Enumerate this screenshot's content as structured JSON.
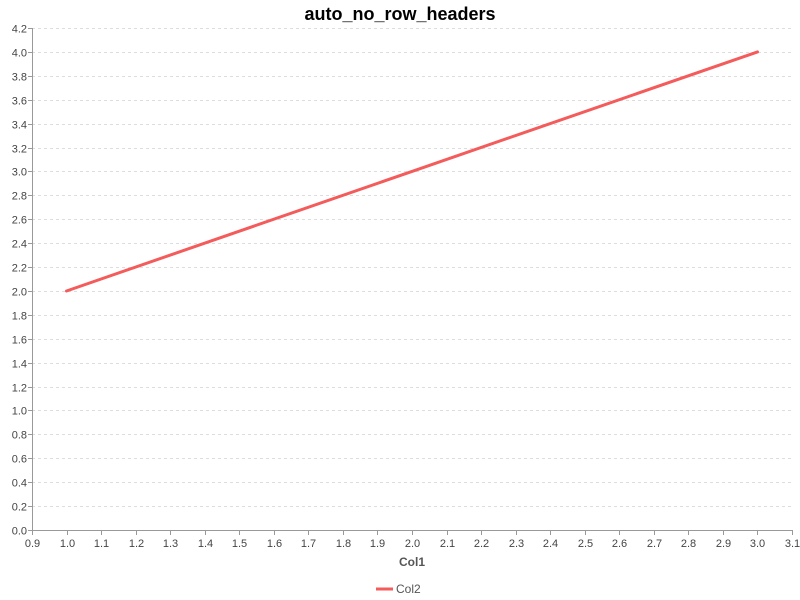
{
  "chart_data": {
    "type": "line",
    "title": "auto_no_row_headers",
    "xlabel": "Col1",
    "ylabel": "",
    "xlim": [
      0.9,
      3.1
    ],
    "ylim": [
      0.0,
      4.2
    ],
    "x_ticks": [
      "0.9",
      "1.0",
      "1.1",
      "1.2",
      "1.3",
      "1.4",
      "1.5",
      "1.6",
      "1.7",
      "1.8",
      "1.9",
      "2.0",
      "2.1",
      "2.2",
      "2.3",
      "2.4",
      "2.5",
      "2.6",
      "2.7",
      "2.8",
      "2.9",
      "3.0",
      "3.1"
    ],
    "y_ticks": [
      "0.0",
      "0.2",
      "0.4",
      "0.6",
      "0.8",
      "1.0",
      "1.2",
      "1.4",
      "1.6",
      "1.8",
      "2.0",
      "2.2",
      "2.4",
      "2.6",
      "2.8",
      "3.0",
      "3.2",
      "3.4",
      "3.6",
      "3.8",
      "4.0",
      "4.2"
    ],
    "grid": "horizontal, dashed",
    "legend_position": "bottom-center",
    "series": [
      {
        "name": "Col2",
        "color": "#f45b5b",
        "x": [
          1.0,
          2.0,
          3.0
        ],
        "y": [
          2.0,
          3.0,
          4.0
        ]
      }
    ]
  }
}
